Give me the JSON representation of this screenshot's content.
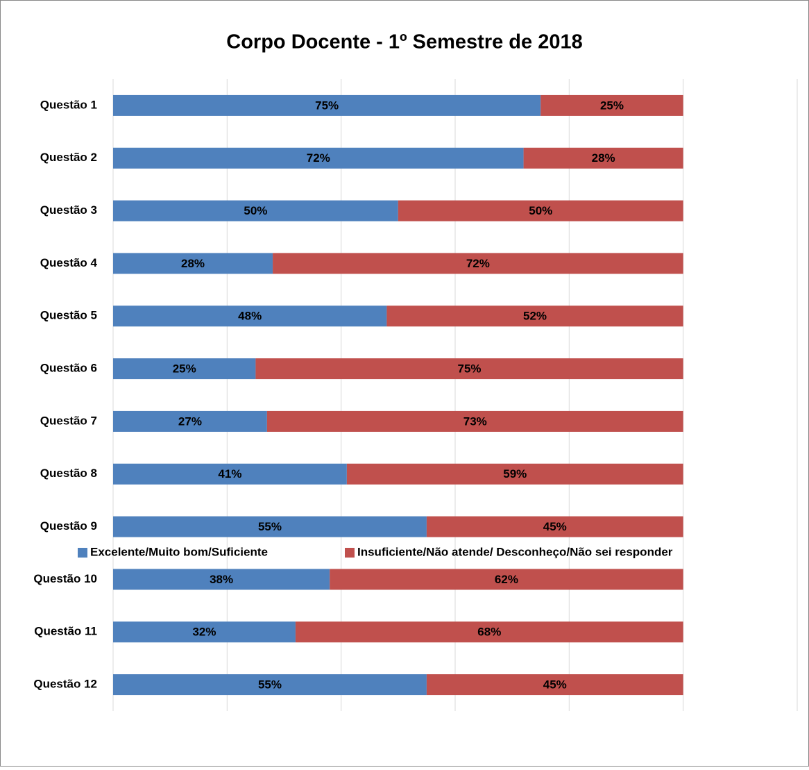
{
  "chart_data": {
    "type": "stacked-barh",
    "title": "Corpo Docente - 1º Semestre de 2018",
    "categories": [
      "Questão 1",
      "Questão 2",
      "Questão 3",
      "Questão 4",
      "Questão 5",
      "Questão 6",
      "Questão 7",
      "Questão 8",
      "Questão 9",
      "Questão 10",
      "Questão 11",
      "Questão 12"
    ],
    "series": [
      {
        "name": "Excelente/Muito bom/Suficiente",
        "color": "#4f81bd",
        "values": [
          75,
          72,
          50,
          28,
          48,
          25,
          27,
          41,
          55,
          38,
          32,
          55
        ],
        "value_labels": [
          "75%",
          "72%",
          "50%",
          "28%",
          "48%",
          "25%",
          "27%",
          "41%",
          "55%",
          "38%",
          "32%",
          "55%"
        ]
      },
      {
        "name": "Insuficiente/Não atende/ Desconheço/Não sei responder",
        "color": "#c0504d",
        "values": [
          25,
          28,
          50,
          72,
          52,
          75,
          73,
          59,
          45,
          62,
          68,
          45
        ],
        "value_labels": [
          "25%",
          "28%",
          "50%",
          "72%",
          "52%",
          "75%",
          "73%",
          "59%",
          "45%",
          "62%",
          "68%",
          "45%"
        ]
      }
    ],
    "xlim": [
      0,
      120
    ],
    "xticks": [
      0,
      20,
      40,
      60,
      80,
      100,
      120
    ],
    "grid": true,
    "legend": "bottom"
  }
}
